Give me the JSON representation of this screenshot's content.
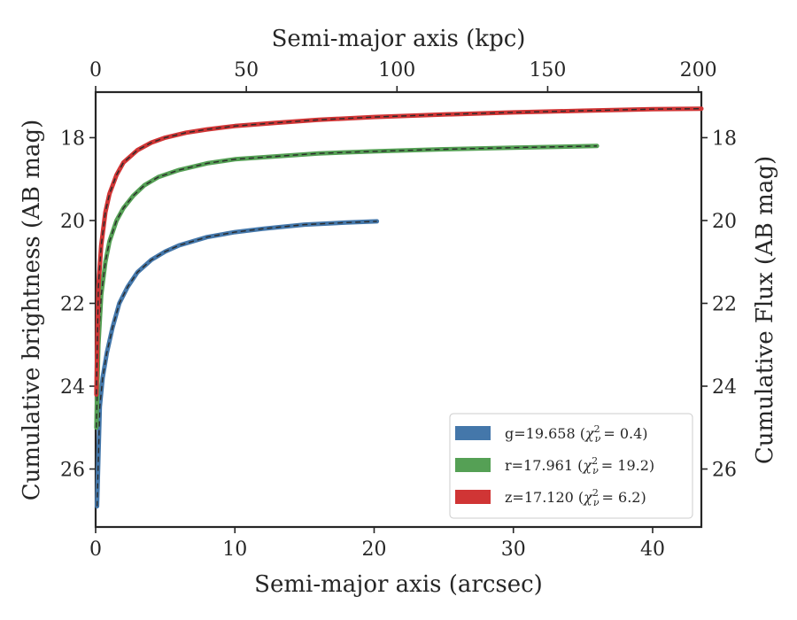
{
  "chart_data": {
    "type": "line",
    "xlabel": "Semi-major axis (arcsec)",
    "ylabel": "Cumulative brightness (AB mag)",
    "top_xlabel": "Semi-major axis (kpc)",
    "right_ylabel": "Cumulative Flux (AB mag)",
    "xlim": [
      0,
      43.5
    ],
    "ylim": [
      27.4,
      16.9
    ],
    "top_xlim": [
      0,
      201
    ],
    "y_inverted": true,
    "x_ticks": [
      0,
      10,
      20,
      30,
      40
    ],
    "y_ticks": [
      18,
      20,
      22,
      24,
      26
    ],
    "top_x_ticks": [
      0,
      50,
      100,
      150,
      200
    ],
    "legend_position": "lower-right",
    "grid": false,
    "series": [
      {
        "band": "g",
        "legend_main": "g=19.658 (",
        "legend_chi_value": "= 0.4)",
        "color": "#4477aa",
        "x": [
          0.1,
          0.3,
          0.5,
          0.8,
          1.2,
          1.7,
          2.3,
          3,
          4,
          5,
          6,
          8,
          10,
          12,
          15,
          18,
          20.2
        ],
        "y": [
          26.9,
          24.5,
          23.8,
          23.2,
          22.6,
          22.0,
          21.6,
          21.25,
          20.95,
          20.75,
          20.6,
          20.4,
          20.28,
          20.2,
          20.1,
          20.05,
          20.02
        ]
      },
      {
        "band": "r",
        "legend_main": "r=17.961 (",
        "legend_chi_value": "= 19.2)",
        "color": "#55a055",
        "x": [
          0.05,
          0.2,
          0.4,
          0.7,
          1,
          1.5,
          2,
          2.7,
          3.5,
          4.5,
          6,
          8,
          10,
          13,
          16,
          20,
          25,
          30,
          36
        ],
        "y": [
          25.0,
          23.0,
          21.8,
          21.0,
          20.5,
          20.0,
          19.7,
          19.4,
          19.15,
          18.95,
          18.78,
          18.62,
          18.52,
          18.45,
          18.38,
          18.33,
          18.28,
          18.24,
          18.2
        ]
      },
      {
        "band": "z",
        "legend_main": "z=17.120 (",
        "legend_chi_value": "= 6.2)",
        "color": "#d03535",
        "x": [
          0.05,
          0.2,
          0.4,
          0.7,
          1,
          1.5,
          2,
          3,
          4,
          5,
          6.5,
          8,
          10,
          13,
          16,
          20,
          25,
          30,
          35,
          40,
          43.5
        ],
        "y": [
          24.2,
          21.6,
          20.6,
          19.8,
          19.35,
          18.9,
          18.6,
          18.3,
          18.12,
          18.0,
          17.88,
          17.8,
          17.72,
          17.64,
          17.57,
          17.5,
          17.44,
          17.39,
          17.35,
          17.31,
          17.3
        ]
      }
    ]
  }
}
